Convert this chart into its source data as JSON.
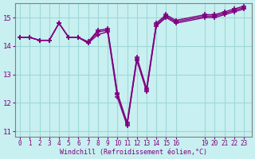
{
  "xlabel": "Windchill (Refroidissement éolien,°C)",
  "background_color": "#c8f0f0",
  "line_color": "#800080",
  "grid_color": "#a0d8d8",
  "x_values": [
    0,
    1,
    2,
    3,
    4,
    5,
    6,
    7,
    8,
    9,
    10,
    11,
    12,
    13,
    14,
    15,
    16,
    19,
    20,
    21,
    22,
    23
  ],
  "line1": [
    14.3,
    14.3,
    14.2,
    14.2,
    14.8,
    14.3,
    14.3,
    14.1,
    14.4,
    14.5,
    12.2,
    11.2,
    13.5,
    12.4,
    14.7,
    15.0,
    14.8,
    15.0,
    15.0,
    15.1,
    15.2,
    15.3
  ],
  "line2": [
    14.3,
    14.3,
    14.2,
    14.2,
    14.8,
    14.3,
    14.3,
    14.1,
    14.5,
    14.55,
    12.3,
    11.25,
    13.55,
    12.45,
    14.75,
    15.05,
    14.85,
    15.05,
    15.05,
    15.15,
    15.25,
    15.35
  ],
  "line3": [
    14.3,
    14.3,
    14.2,
    14.2,
    14.8,
    14.3,
    14.3,
    14.15,
    14.55,
    14.6,
    12.35,
    11.3,
    13.6,
    12.5,
    14.8,
    15.1,
    14.9,
    15.1,
    15.1,
    15.2,
    15.3,
    15.4
  ],
  "ylim": [
    10.8,
    15.5
  ],
  "yticks": [
    11,
    12,
    13,
    14,
    15
  ],
  "xtick_positions": [
    0,
    1,
    2,
    3,
    4,
    5,
    6,
    7,
    8,
    9,
    10,
    11,
    12,
    13,
    14,
    15,
    16,
    19,
    20,
    21,
    22,
    23
  ],
  "xtick_labels": [
    "0",
    "1",
    "2",
    "3",
    "4",
    "5",
    "6",
    "7",
    "8",
    "9",
    "10",
    "11",
    "12",
    "13",
    "14",
    "15",
    "16",
    "19",
    "20",
    "21",
    "22",
    "23"
  ]
}
